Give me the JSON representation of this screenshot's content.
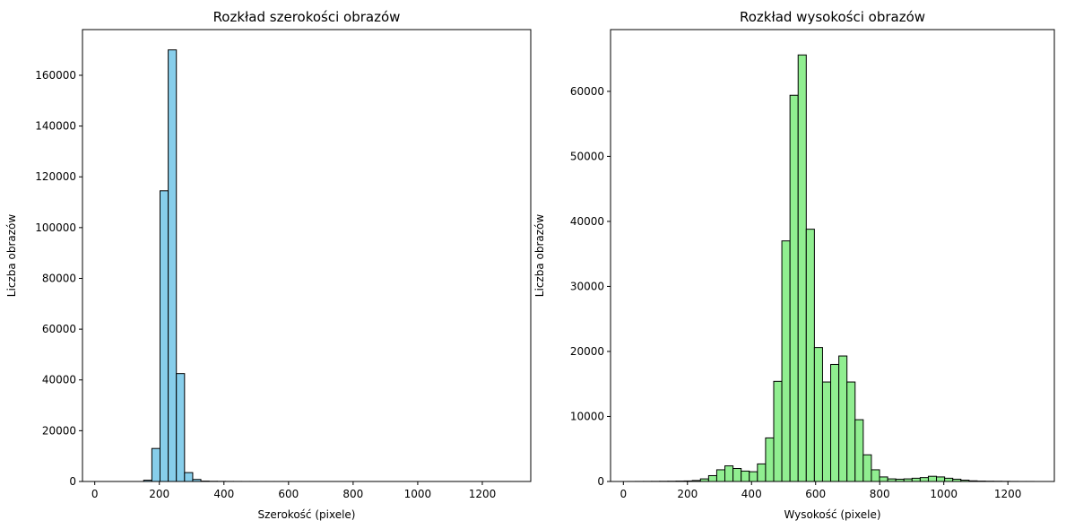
{
  "colors": {
    "left_bars": "#87ceeb",
    "right_bars": "#90ee90",
    "bar_edge": "#000000"
  },
  "chart_data": [
    {
      "type": "bar",
      "title": "Rozkład szerokości obrazów",
      "xlabel": "Szerokość (pixele)",
      "ylabel": "Liczba obrazów",
      "xlim": [
        -38,
        1350
      ],
      "ylim": [
        0,
        178000
      ],
      "xticks": [
        0,
        200,
        400,
        600,
        800,
        1000,
        1200
      ],
      "yticks": [
        0,
        20000,
        40000,
        60000,
        80000,
        100000,
        120000,
        140000,
        160000
      ],
      "grid": false,
      "bin_start": 25,
      "bin_width": 25.3,
      "values": [
        0,
        0,
        0,
        0,
        0,
        500,
        13000,
        114500,
        170000,
        42500,
        3500,
        800,
        150,
        80,
        50,
        30,
        20,
        10,
        10,
        5,
        5,
        5,
        5,
        3,
        3,
        2,
        2,
        2,
        2,
        1,
        1,
        1,
        1,
        1,
        1,
        1,
        1,
        1,
        1,
        1,
        1,
        1,
        1,
        1,
        1,
        1,
        1,
        1,
        1,
        1
      ]
    },
    {
      "type": "bar",
      "title": "Rozkład wysokości obrazów",
      "xlabel": "Wysokość (pixele)",
      "ylabel": "Liczba obrazów",
      "xlim": [
        -40,
        1345
      ],
      "ylim": [
        0,
        69500
      ],
      "xticks": [
        0,
        200,
        400,
        600,
        800,
        1000,
        1200
      ],
      "yticks": [
        0,
        10000,
        20000,
        30000,
        40000,
        50000,
        60000
      ],
      "grid": false,
      "bin_start": 12,
      "bin_width": 25.4,
      "values": [
        5,
        10,
        15,
        20,
        30,
        40,
        60,
        80,
        150,
        400,
        900,
        1800,
        2400,
        2000,
        1600,
        1500,
        2700,
        6700,
        15400,
        37000,
        59400,
        65600,
        38800,
        20600,
        15300,
        18000,
        19300,
        15300,
        9500,
        4100,
        1800,
        700,
        400,
        350,
        400,
        500,
        600,
        800,
        700,
        500,
        350,
        200,
        100,
        60,
        40,
        30,
        20,
        10,
        5,
        5
      ]
    }
  ]
}
